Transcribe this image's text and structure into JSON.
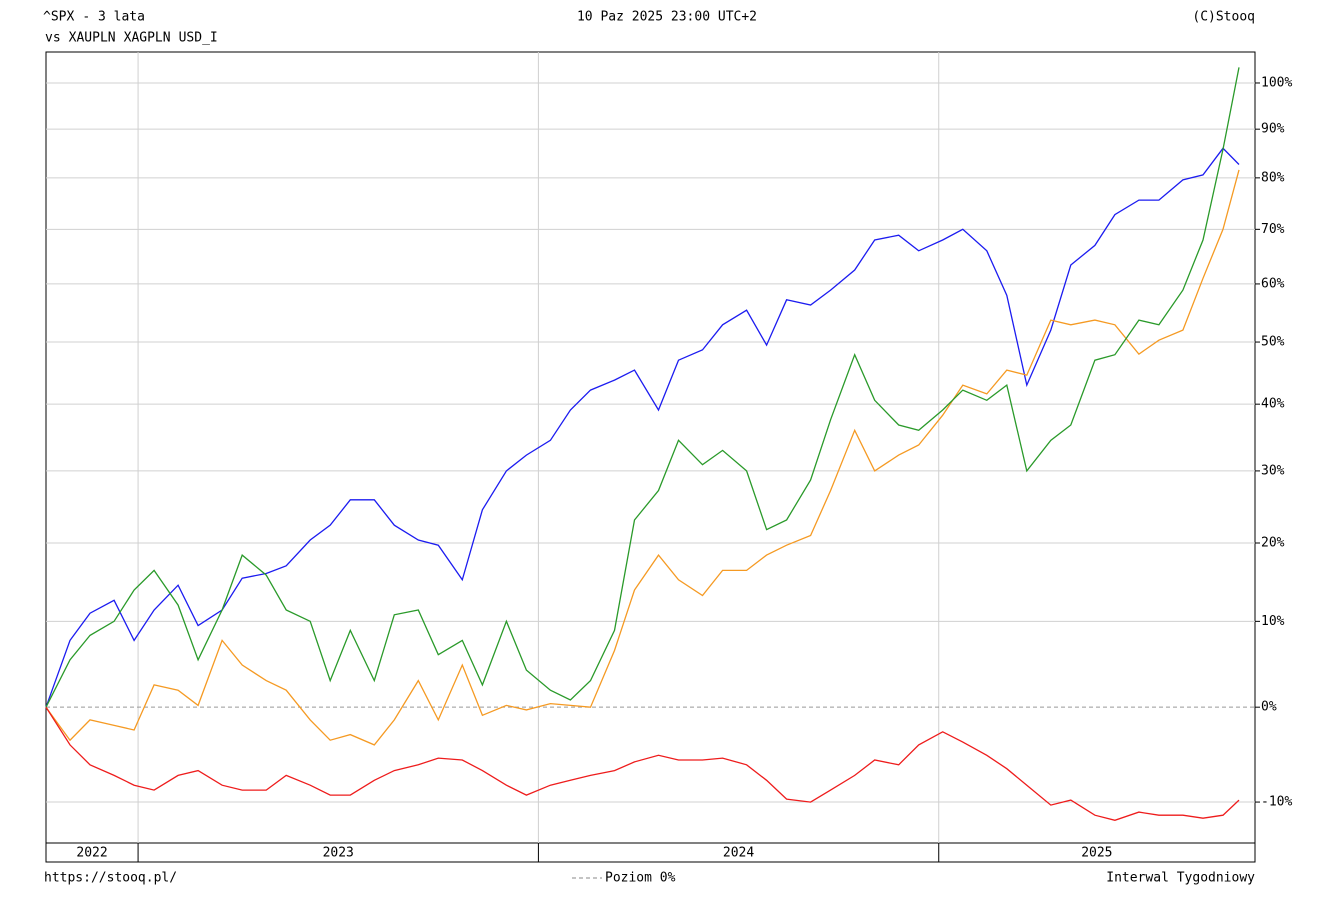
{
  "chart_data": {
    "type": "line",
    "title": "- 3 lata",
    "legend_prefix": "vs",
    "date": "10 Paz 2025 23:00 UTC+2",
    "copyright": "(C)Stooq",
    "source": "https://stooq.pl/",
    "interval": "Interwal Tygodniowy",
    "reference_line": {
      "value": 0,
      "label": "Poziom 0%"
    },
    "log_scale": true,
    "grid": true,
    "xlim": [
      2022.77,
      2025.79
    ],
    "xticks": [
      2023,
      2024,
      2025
    ],
    "x_band_labels": [
      "2022",
      "2023",
      "2024",
      "2025"
    ],
    "ylim": [
      -14,
      107
    ],
    "yticks": [
      {
        "value": -10,
        "label": "-10%"
      },
      {
        "value": 0,
        "label": "0%"
      },
      {
        "value": 10,
        "label": "10%"
      },
      {
        "value": 20,
        "label": "20%"
      },
      {
        "value": 30,
        "label": "30%"
      },
      {
        "value": 40,
        "label": "40%"
      },
      {
        "value": 50,
        "label": "50%"
      },
      {
        "value": 60,
        "label": "60%"
      },
      {
        "value": 70,
        "label": "70%"
      },
      {
        "value": 80,
        "label": "80%"
      },
      {
        "value": 90,
        "label": "90%"
      },
      {
        "value": 100,
        "label": "100%"
      }
    ],
    "x": [
      2022.77,
      2022.83,
      2022.88,
      2022.94,
      2022.99,
      2023.04,
      2023.1,
      2023.15,
      2023.21,
      2023.26,
      2023.32,
      2023.37,
      2023.43,
      2023.48,
      2023.53,
      2023.59,
      2023.64,
      2023.7,
      2023.75,
      2023.81,
      2023.86,
      2023.92,
      2023.97,
      2024.03,
      2024.08,
      2024.13,
      2024.19,
      2024.24,
      2024.3,
      2024.35,
      2024.41,
      2024.46,
      2024.52,
      2024.57,
      2024.62,
      2024.68,
      2024.73,
      2024.79,
      2024.84,
      2024.9,
      2024.95,
      2025.01,
      2025.06,
      2025.12,
      2025.17,
      2025.22,
      2025.28,
      2025.33,
      2025.39,
      2025.44,
      2025.5,
      2025.55,
      2025.61,
      2025.66,
      2025.71,
      2025.75
    ],
    "series": [
      {
        "name": "^SPX",
        "color": "#1c1cf0",
        "values": [
          0,
          7.7,
          11,
          12.6,
          7.7,
          11.4,
          14.5,
          9.5,
          11.4,
          15.4,
          16,
          17,
          20.4,
          22.4,
          25.9,
          25.9,
          22.4,
          20.4,
          19.7,
          15.2,
          24.5,
          30,
          32.3,
          34.5,
          39.1,
          42.2,
          43.8,
          45.4,
          39.1,
          47,
          48.7,
          52.9,
          55.4,
          49.5,
          57.2,
          56.3,
          58.9,
          62.5,
          68,
          68.9,
          66,
          68,
          70,
          66,
          58,
          43,
          52,
          63.4,
          67,
          72.8,
          75.6,
          75.6,
          79.6,
          80.6,
          86,
          82.7
        ]
      },
      {
        "name": "XAUPLN",
        "color": "#f59a23",
        "values": [
          0,
          -3.6,
          -1.4,
          -2,
          -2.5,
          2.5,
          1.9,
          0.2,
          7.7,
          4.8,
          3,
          1.9,
          -1.4,
          -3.6,
          -3,
          -4.1,
          -1.4,
          3,
          -1.4,
          4.8,
          -0.9,
          0.2,
          -0.3,
          0.4,
          0.2,
          0,
          6.5,
          13.9,
          18.4,
          15.2,
          13.2,
          16.4,
          16.4,
          18.4,
          19.7,
          21,
          27.2,
          36,
          30,
          32.3,
          33.8,
          38.3,
          43,
          41.6,
          45.4,
          44.6,
          53.7,
          52.9,
          53.7,
          52.9,
          48,
          50.3,
          52,
          61,
          70,
          81.6
        ]
      },
      {
        "name": "XAGPLN",
        "color": "#2a9a2a",
        "values": [
          0,
          5.4,
          8.3,
          10,
          13.9,
          16.4,
          12,
          5.4,
          11.4,
          18.4,
          15.8,
          11.4,
          10,
          3,
          8.9,
          3,
          10.8,
          11.4,
          6,
          7.7,
          2.5,
          10,
          4.2,
          1.9,
          0.8,
          3,
          8.9,
          23.1,
          27.2,
          34.5,
          30.9,
          33,
          30,
          21.8,
          23.1,
          28.7,
          37.6,
          47.9,
          40.6,
          36.8,
          36,
          39.1,
          42.2,
          40.6,
          43,
          30,
          34.5,
          36.8,
          47,
          47.9,
          53.7,
          52.9,
          58.9,
          68,
          85.8,
          103.5
        ]
      },
      {
        "name": "USD_I",
        "color": "#ee1c1c",
        "values": [
          0,
          -4.1,
          -6.2,
          -7.3,
          -8.3,
          -8.8,
          -7.3,
          -6.8,
          -8.3,
          -8.8,
          -8.8,
          -7.3,
          -8.3,
          -9.3,
          -9.3,
          -7.8,
          -6.8,
          -6.2,
          -5.5,
          -5.7,
          -6.8,
          -8.3,
          -9.3,
          -8.3,
          -7.8,
          -7.3,
          -6.8,
          -5.9,
          -5.2,
          -5.7,
          -5.7,
          -5.5,
          -6.2,
          -7.8,
          -9.7,
          -10,
          -8.8,
          -7.3,
          -5.7,
          -6.2,
          -4.1,
          -2.7,
          -3.8,
          -5.2,
          -6.6,
          -8.3,
          -10.3,
          -9.8,
          -11.3,
          -11.8,
          -11,
          -11.3,
          -11.3,
          -11.6,
          -11.3,
          -9.8
        ]
      }
    ]
  }
}
